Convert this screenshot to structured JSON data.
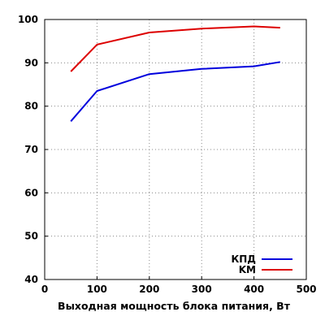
{
  "chart_data": {
    "type": "line",
    "title": "",
    "xlabel": "Выходная мощность блока питания, Вт",
    "ylabel": "",
    "xlim": [
      0,
      500
    ],
    "ylim": [
      40,
      100
    ],
    "xticks": [
      "0",
      "100",
      "200",
      "300",
      "400",
      "500"
    ],
    "yticks": [
      "40",
      "50",
      "60",
      "70",
      "80",
      "90",
      "100"
    ],
    "grid": true,
    "legend_position": "bottom-right",
    "series": [
      {
        "name": "КПД",
        "color": "#0000dd",
        "x": [
          50,
          100,
          200,
          300,
          400,
          450
        ],
        "y": [
          76.5,
          83.5,
          87.4,
          88.6,
          89.2,
          90.2
        ]
      },
      {
        "name": "KM",
        "color": "#dd0000",
        "x": [
          50,
          100,
          200,
          300,
          400,
          450
        ],
        "y": [
          88.0,
          94.2,
          97.0,
          97.9,
          98.4,
          98.1
        ]
      }
    ]
  }
}
